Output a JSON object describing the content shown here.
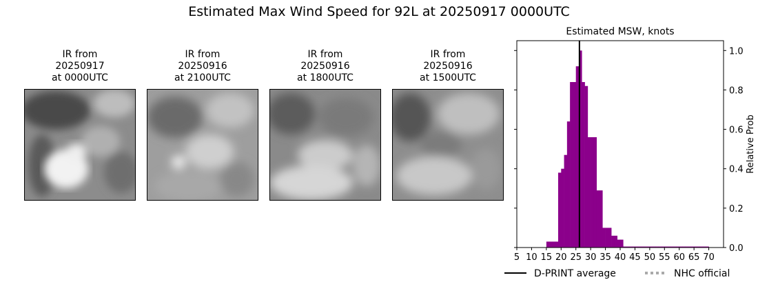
{
  "figure": {
    "suptitle": "Estimated Max Wind Speed for 92L at 20250917 0000UTC"
  },
  "ir_panels": [
    {
      "line1": "IR from",
      "line2": "20250917",
      "line3": "at 0000UTC"
    },
    {
      "line1": "IR from",
      "line2": "20250916",
      "line3": "at 2100UTC"
    },
    {
      "line1": "IR from",
      "line2": "20250916",
      "line3": "at 1800UTC"
    },
    {
      "line1": "IR from",
      "line2": "20250916",
      "line3": "at 1500UTC"
    }
  ],
  "chart_data": {
    "type": "bar",
    "title": "Estimated MSW, knots",
    "xlabel": "",
    "ylabel": "Relative Prob",
    "xlim": [
      5,
      75
    ],
    "ylim": [
      0,
      1.05
    ],
    "xticks": [
      5,
      10,
      15,
      20,
      25,
      30,
      35,
      40,
      45,
      50,
      55,
      60,
      65,
      70
    ],
    "yticks": [
      0.0,
      0.2,
      0.4,
      0.6,
      0.8,
      1.0
    ],
    "ytick_labels": [
      "0.0",
      "0.2",
      "0.4",
      "0.6",
      "0.8",
      "1.0"
    ],
    "bin_width": 1,
    "bins": [
      {
        "x": 15,
        "y": 0.03
      },
      {
        "x": 16,
        "y": 0.03
      },
      {
        "x": 17,
        "y": 0.03
      },
      {
        "x": 18,
        "y": 0.03
      },
      {
        "x": 19,
        "y": 0.38
      },
      {
        "x": 20,
        "y": 0.4
      },
      {
        "x": 21,
        "y": 0.47
      },
      {
        "x": 22,
        "y": 0.64
      },
      {
        "x": 23,
        "y": 0.84
      },
      {
        "x": 24,
        "y": 0.84
      },
      {
        "x": 25,
        "y": 0.92
      },
      {
        "x": 26,
        "y": 1.0
      },
      {
        "x": 27,
        "y": 0.84
      },
      {
        "x": 28,
        "y": 0.82
      },
      {
        "x": 29,
        "y": 0.56
      },
      {
        "x": 30,
        "y": 0.56
      },
      {
        "x": 31,
        "y": 0.56
      },
      {
        "x": 32,
        "y": 0.29
      },
      {
        "x": 33,
        "y": 0.29
      },
      {
        "x": 34,
        "y": 0.1
      },
      {
        "x": 35,
        "y": 0.1
      },
      {
        "x": 36,
        "y": 0.1
      },
      {
        "x": 37,
        "y": 0.06
      },
      {
        "x": 38,
        "y": 0.06
      },
      {
        "x": 39,
        "y": 0.04
      },
      {
        "x": 40,
        "y": 0.04
      },
      {
        "x": 41,
        "y": 0.005
      },
      {
        "x": 42,
        "y": 0.005
      },
      {
        "x": 43,
        "y": 0.005
      },
      {
        "x": 44,
        "y": 0.005
      },
      {
        "x": 45,
        "y": 0.005
      },
      {
        "x": 46,
        "y": 0.005
      },
      {
        "x": 47,
        "y": 0.005
      },
      {
        "x": 48,
        "y": 0.005
      },
      {
        "x": 49,
        "y": 0.005
      },
      {
        "x": 50,
        "y": 0.005
      },
      {
        "x": 51,
        "y": 0.005
      },
      {
        "x": 52,
        "y": 0.005
      },
      {
        "x": 53,
        "y": 0.005
      },
      {
        "x": 54,
        "y": 0.005
      },
      {
        "x": 55,
        "y": 0.005
      },
      {
        "x": 56,
        "y": 0.005
      },
      {
        "x": 57,
        "y": 0.005
      },
      {
        "x": 58,
        "y": 0.005
      },
      {
        "x": 59,
        "y": 0.005
      },
      {
        "x": 60,
        "y": 0.005
      },
      {
        "x": 61,
        "y": 0.005
      },
      {
        "x": 62,
        "y": 0.005
      },
      {
        "x": 63,
        "y": 0.005
      },
      {
        "x": 64,
        "y": 0.005
      },
      {
        "x": 65,
        "y": 0.005
      },
      {
        "x": 66,
        "y": 0.005
      },
      {
        "x": 67,
        "y": 0.005
      },
      {
        "x": 68,
        "y": 0.005
      },
      {
        "x": 69,
        "y": 0.005
      }
    ],
    "dprint_average": 26.2,
    "bar_color": "#8b008b",
    "average_line_color": "#000000",
    "nhc_color": "#aaaaaa",
    "legend": {
      "placement": "bottom",
      "entries": [
        {
          "label": "D-PRINT average",
          "style": "solid"
        },
        {
          "label": "NHC official",
          "style": "dotted"
        }
      ]
    },
    "grid": false
  }
}
